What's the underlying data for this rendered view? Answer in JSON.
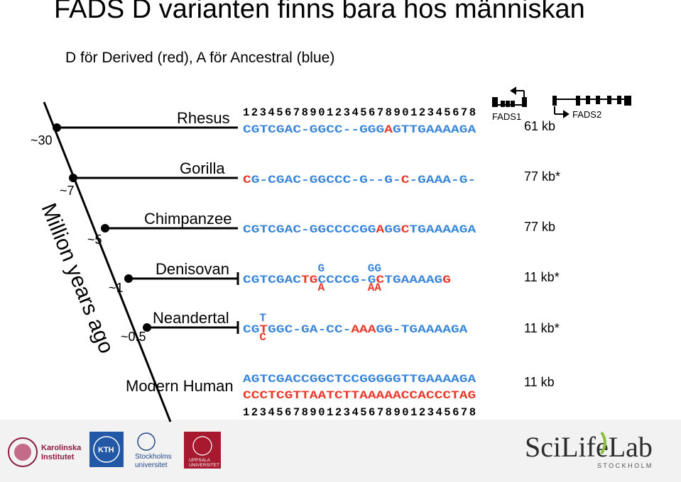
{
  "slide": {
    "title": "FADS D varianten finns bara hos människan",
    "subtitle": "D för Derived (red), A för Ancestral (blue)"
  },
  "colors": {
    "derived": "#e8392b",
    "ancestral": "#3a86d8",
    "tree": "#000000"
  },
  "axis": {
    "label": "Million years ago",
    "times": [
      "~30",
      "~7",
      "~5",
      "~1",
      "~0.5"
    ]
  },
  "gene_map": {
    "labels": [
      "FADS1",
      "FADS2"
    ]
  },
  "position_ruler": "123456789012345678901234567 8",
  "rows": [
    {
      "species": "Rhesus",
      "size": "61 kb",
      "seq": [
        [
          "CGTCGAC-GGCC--GGG",
          "A"
        ],
        [
          "A",
          "D"
        ],
        [
          "GTTGAAAAGA",
          "A"
        ]
      ]
    },
    {
      "species": "Gorilla",
      "size": "77 kb*",
      "seq": [
        [
          "C",
          "D"
        ],
        [
          "G-CGAC-GGCCC-G--G-",
          "A"
        ],
        [
          "C",
          "D"
        ],
        [
          "-GAAA-G-",
          "A"
        ]
      ]
    },
    {
      "species": "Chimpanzee",
      "size": "77 kb",
      "seq": [
        [
          "CGTCGAC-GGCCCCGG",
          "A"
        ],
        [
          "A",
          "D"
        ],
        [
          "GG",
          "A"
        ],
        [
          "C",
          "D"
        ],
        [
          "TGAAAAGA",
          "A"
        ]
      ]
    },
    {
      "species": "Denisovan",
      "size": "11 kb*",
      "seq": [
        [
          "CGTCGAC",
          "A"
        ],
        [
          "TG",
          "D"
        ],
        [
          "CCCCG",
          "A"
        ],
        [
          "-G",
          "A"
        ],
        [
          "C",
          "D"
        ],
        [
          "TGAAAAG",
          "A"
        ],
        [
          "G",
          "D"
        ]
      ],
      "above": [
        [
          "G",
          "A"
        ],
        [
          "GG",
          "A"
        ]
      ],
      "below": [
        [
          "A",
          "D"
        ],
        [
          "AA",
          "D"
        ]
      ]
    },
    {
      "species": "Neandertal",
      "size": "11 kb*",
      "seq": [
        [
          "CG",
          "A"
        ],
        [
          "T",
          "D"
        ],
        [
          "GGC-GA-CC-",
          "A"
        ],
        [
          "AAA",
          "D"
        ],
        [
          "GG-TGAAAAGA",
          "A"
        ]
      ],
      "above": [
        [
          "T",
          "A"
        ]
      ],
      "below": [
        [
          "C",
          "D"
        ]
      ]
    },
    {
      "species": "Modern Human",
      "size": "11 kb",
      "seq": [
        [
          "AGTCGACCGGCTCCGGGGGTTGAAAAGA",
          "A"
        ]
      ],
      "seq2": [
        [
          "CCCTCGTTAATCTTAAAAACCACCCTAG",
          "D"
        ]
      ]
    }
  ],
  "ruler_top": "1234567890123456789012345678",
  "ruler_bottom": "1234567890123456789012345678",
  "logos": {
    "karolinska": [
      "Karolinska",
      "Institutet"
    ],
    "kth": "KTH",
    "stockholm": [
      "Stockholms",
      "universitet"
    ],
    "uppsala": [
      "UPPSALA",
      "UNIVERSITET"
    ],
    "scilifelab": "SciLifeLab",
    "scilifelab_sub": "S T O C K H O L M"
  }
}
